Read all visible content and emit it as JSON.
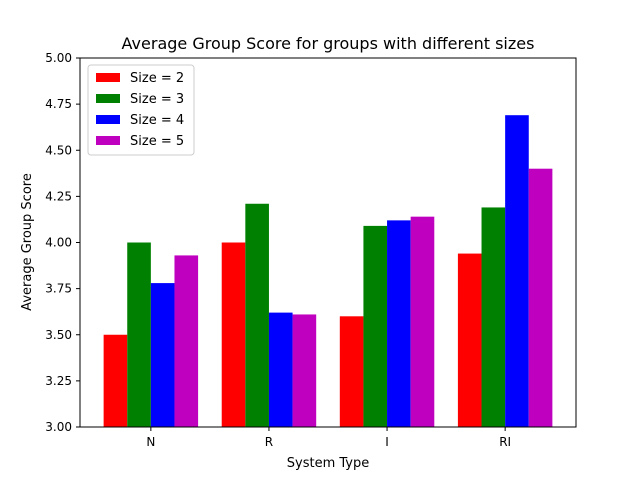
{
  "chart_data": {
    "type": "bar",
    "title": "Average Group Score for groups with different sizes",
    "xlabel": "System Type",
    "ylabel": "Average Group Score",
    "categories": [
      "N",
      "R",
      "I",
      "RI"
    ],
    "ylim": [
      3.0,
      5.0
    ],
    "yticks": [
      "3.00",
      "3.25",
      "3.50",
      "3.75",
      "4.00",
      "4.25",
      "4.50",
      "4.75",
      "5.00"
    ],
    "grid": false,
    "legend_position": "top-left",
    "series": [
      {
        "name": "Size = 2",
        "color": "#ff0000",
        "values": [
          3.5,
          4.0,
          3.6,
          3.94
        ]
      },
      {
        "name": "Size = 3",
        "color": "#008000",
        "values": [
          4.0,
          4.21,
          4.09,
          4.19
        ]
      },
      {
        "name": "Size = 4",
        "color": "#0000ff",
        "values": [
          3.78,
          3.62,
          4.12,
          4.69
        ]
      },
      {
        "name": "Size = 5",
        "color": "#bf00bf",
        "values": [
          3.93,
          3.61,
          4.14,
          4.4
        ]
      }
    ]
  }
}
